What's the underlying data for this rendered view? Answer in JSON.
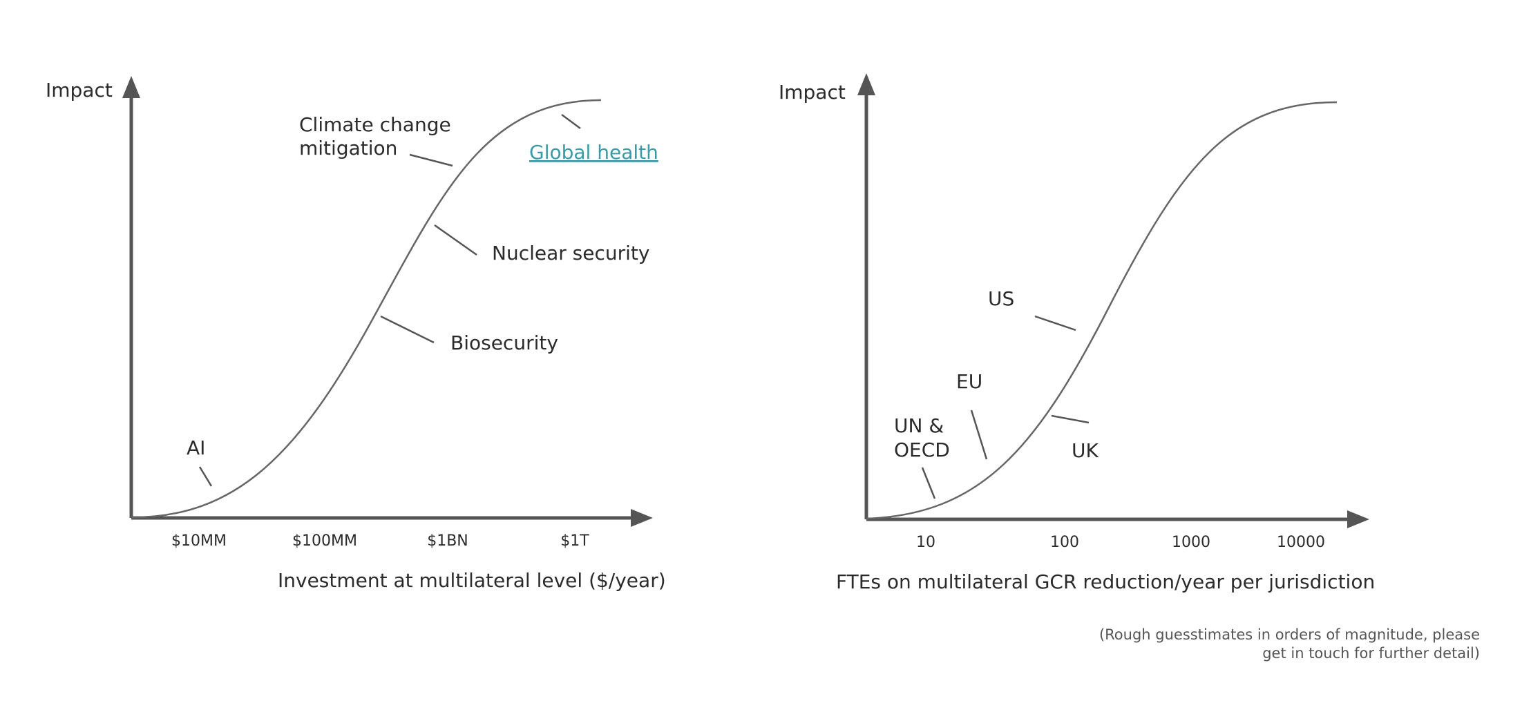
{
  "left": {
    "ylabel": "Impact",
    "xlabel": "Investment at multilateral level ($/year)",
    "ticks": [
      "$10MM",
      "$100MM",
      "$1BN",
      "$1T"
    ],
    "labels": {
      "ai": "AI",
      "climate_line1": "Climate change",
      "climate_line2": "mitigation",
      "global_health": "Global health",
      "nuclear": "Nuclear security",
      "biosecurity": "Biosecurity"
    }
  },
  "right": {
    "ylabel": "Impact",
    "xlabel": "FTEs on multilateral GCR reduction/year per jurisdiction",
    "ticks": [
      "10",
      "100",
      "1000",
      "10000"
    ],
    "labels": {
      "us": "US",
      "eu": "EU",
      "un_line1": "UN &",
      "un_line2": "OECD",
      "uk": "UK"
    }
  },
  "footnote": {
    "line1": "(Rough guesstimates in orders of magnitude, please",
    "line2": "get in touch for further detail)"
  },
  "colors": {
    "axis": "#555555",
    "curve": "#666666",
    "link": "#3a9aa5"
  }
}
